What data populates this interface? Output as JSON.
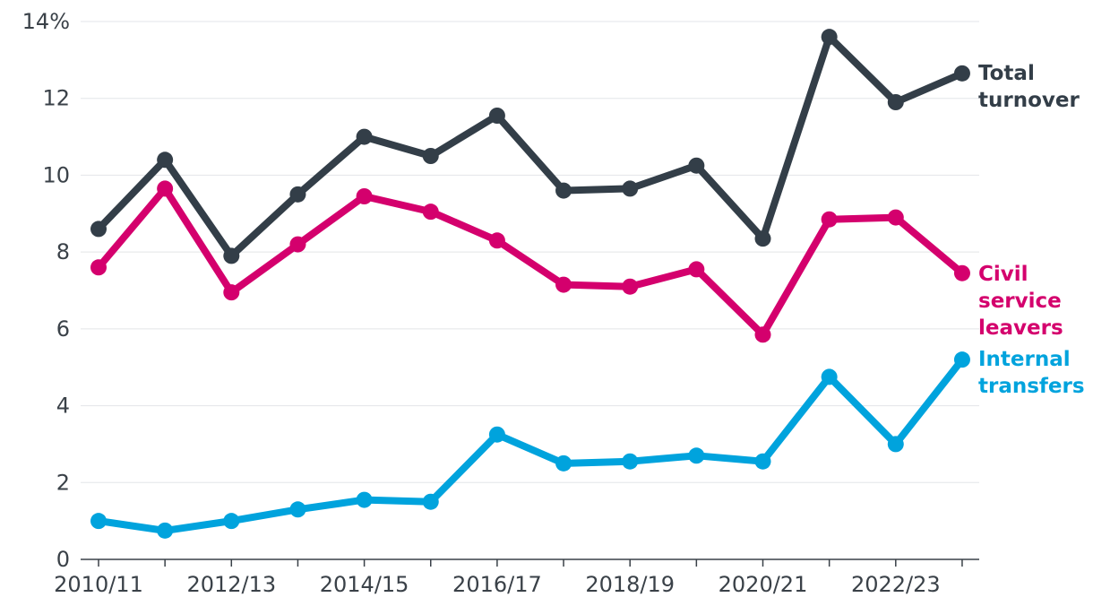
{
  "chart_data": {
    "type": "line",
    "x": [
      "2010/11",
      "2011/12",
      "2012/13",
      "2013/14",
      "2014/15",
      "2015/16",
      "2016/17",
      "2017/18",
      "2018/19",
      "2019/20",
      "2020/21",
      "2021/22",
      "2022/23",
      "2023/24"
    ],
    "x_tick_labels": [
      "2010/11",
      "2012/13",
      "2014/15",
      "2016/17",
      "2018/19",
      "2020/21",
      "2022/23"
    ],
    "y_tick_labels": [
      "0",
      "2",
      "4",
      "6",
      "8",
      "10",
      "12",
      "14%"
    ],
    "ylim": [
      0,
      14
    ],
    "grid": "horizontal",
    "legend": "direct labels at line ends",
    "series": [
      {
        "key": "total",
        "label_lines": [
          "Total",
          "turnover"
        ],
        "color": "#333e48",
        "values": [
          8.6,
          10.4,
          7.9,
          9.5,
          11.0,
          10.5,
          11.55,
          9.6,
          9.65,
          10.25,
          8.35,
          13.6,
          11.9,
          12.65
        ]
      },
      {
        "key": "leavers",
        "label_lines": [
          "Civil",
          "service",
          "leavers"
        ],
        "color": "#d4006d",
        "values": [
          7.6,
          9.65,
          6.95,
          8.2,
          9.45,
          9.05,
          8.3,
          7.15,
          7.1,
          7.55,
          5.85,
          8.85,
          8.9,
          7.45
        ]
      },
      {
        "key": "transfers",
        "label_lines": [
          "Internal",
          "transfers"
        ],
        "color": "#00a3dd",
        "values": [
          1.0,
          0.75,
          1.0,
          1.3,
          1.55,
          1.5,
          3.25,
          2.5,
          2.55,
          2.7,
          2.55,
          4.75,
          3.0,
          5.2
        ]
      }
    ]
  }
}
